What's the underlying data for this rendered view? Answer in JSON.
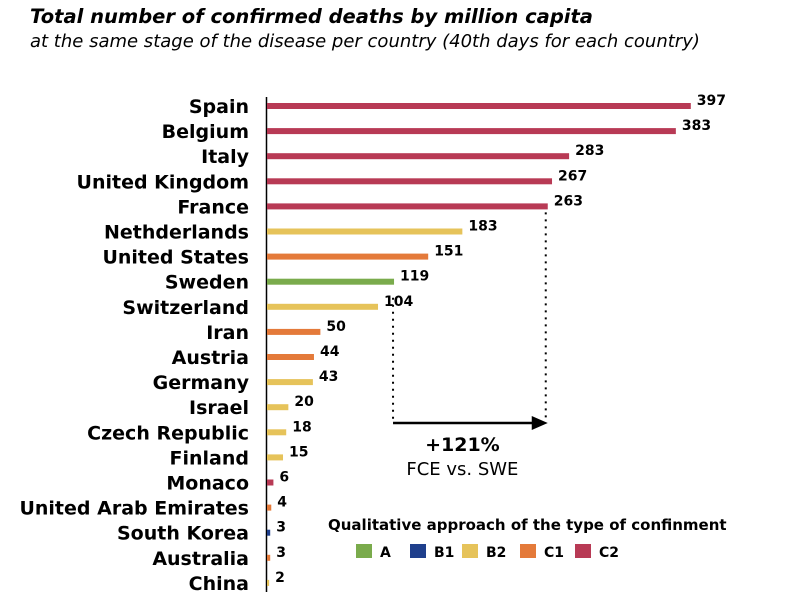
{
  "header": {
    "title": "Total number of confirmed deaths by million capita",
    "subtitle": "at the same stage of the disease per country (40th days for each country)"
  },
  "colors": {
    "A": "#7aab4c",
    "B1": "#1f3f8c",
    "B2": "#e6c35a",
    "C1": "#e47a3a",
    "C2": "#b83a55"
  },
  "chart_data": {
    "type": "bar",
    "orientation": "horizontal",
    "title": "Total number of confirmed deaths by million capita",
    "subtitle": "at the same stage of the disease per country (40th days for each country)",
    "xlim": [
      0,
      400
    ],
    "categories": [
      "Spain",
      "Belgium",
      "Italy",
      "United Kingdom",
      "France",
      "Nethderlands",
      "United States",
      "Sweden",
      "Switzerland",
      "Iran",
      "Austria",
      "Germany",
      "Israel",
      "Czech Republic",
      "Finland",
      "Monaco",
      "United Arab Emirates",
      "South Korea",
      "Australia",
      "China"
    ],
    "values": [
      397,
      383,
      283,
      267,
      263,
      183,
      151,
      119,
      104,
      50,
      44,
      43,
      20,
      18,
      15,
      6,
      4,
      3,
      3,
      2
    ],
    "groups": [
      "C2",
      "C2",
      "C2",
      "C2",
      "C2",
      "B2",
      "C1",
      "A",
      "B2",
      "C1",
      "C1",
      "B2",
      "B2",
      "B2",
      "B2",
      "C2",
      "C1",
      "B1",
      "C1",
      "B2"
    ],
    "legend": {
      "title": "Qualitative approach of the type of confinment",
      "entries": [
        "A",
        "B1",
        "B2",
        "C1",
        "C2"
      ],
      "placement": "bottom-right"
    },
    "annotation": {
      "label": "+121%",
      "sublabel": "FCE vs. SWE",
      "from_category": "Sweden",
      "to_category": "France"
    }
  }
}
